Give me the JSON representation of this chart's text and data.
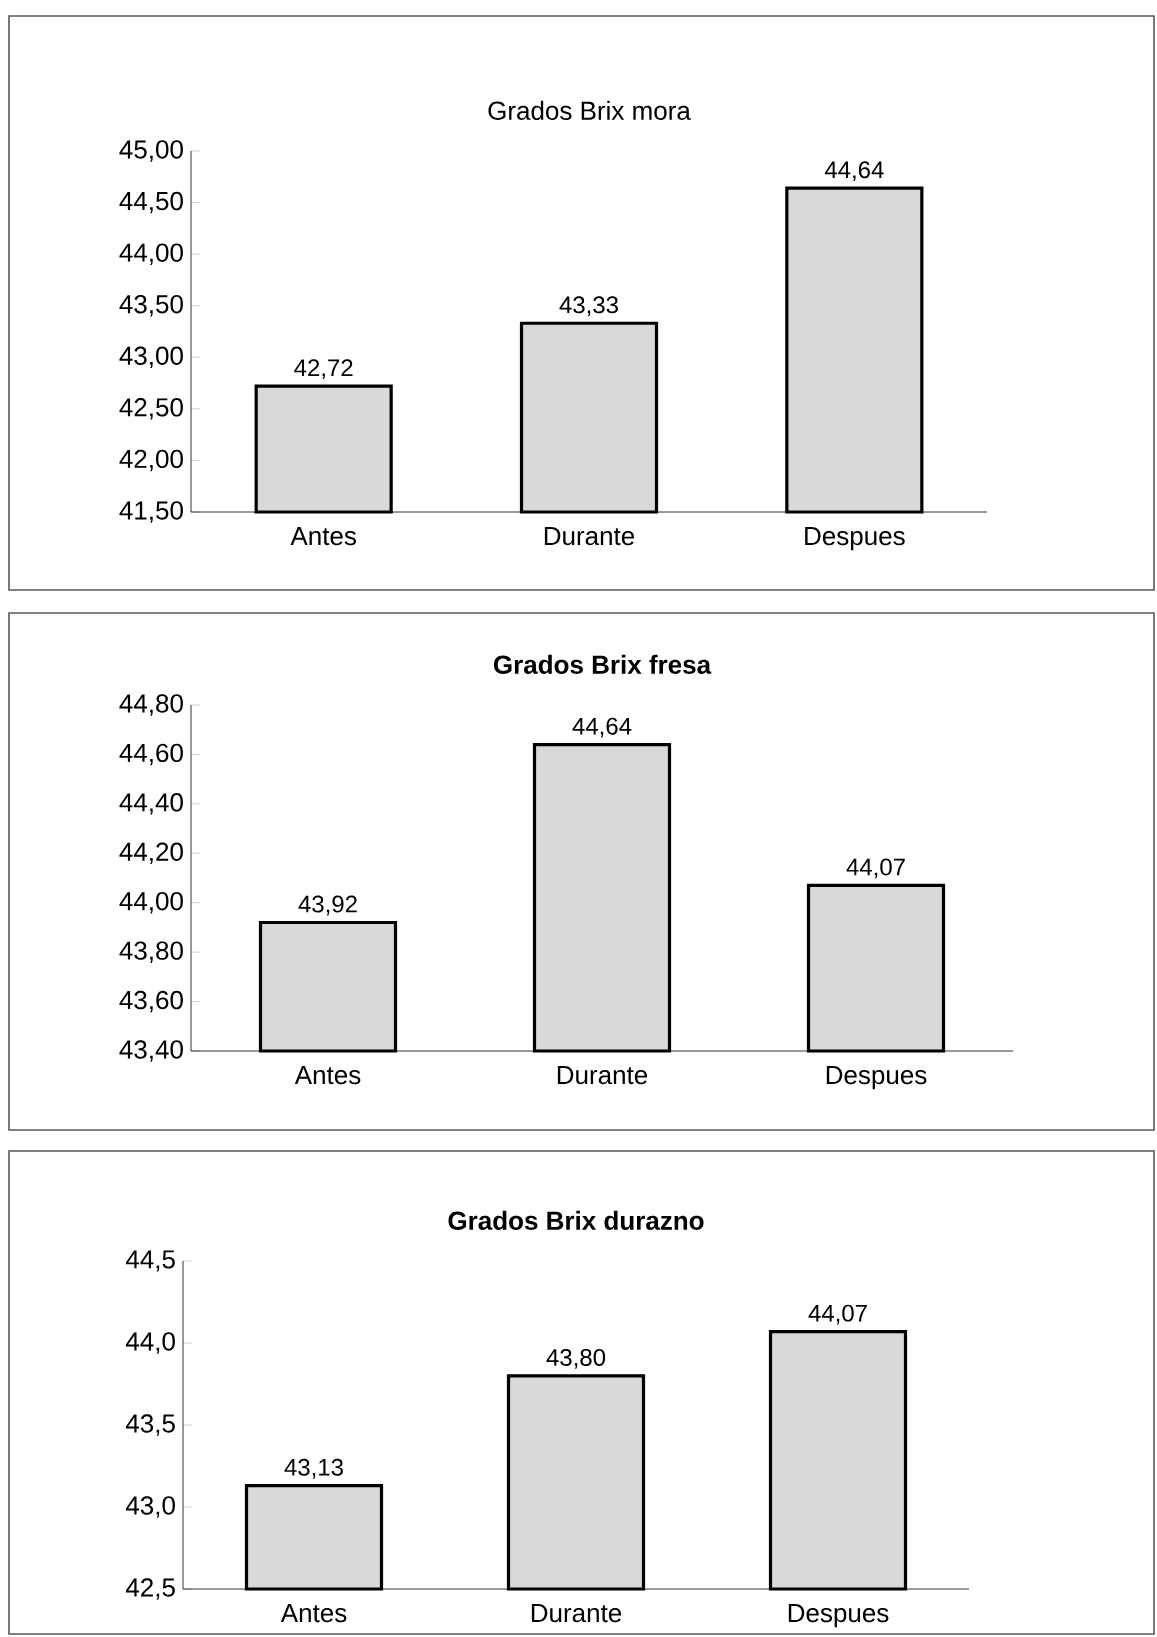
{
  "chart_data": [
    {
      "type": "bar",
      "title": "Grados Brix mora",
      "categories": [
        "Antes",
        "Durante",
        "Despues"
      ],
      "values": [
        42.72,
        43.33,
        44.64
      ],
      "value_labels": [
        "42,72",
        "43,33",
        "44,64"
      ],
      "color": "#d9d9d9",
      "ylim": [
        41.5,
        45
      ],
      "yticks": [
        {
          "value": 41.5,
          "label": "41,50"
        },
        {
          "value": 42,
          "label": "42,00"
        },
        {
          "value": 42.5,
          "label": "42,50"
        },
        {
          "value": 43,
          "label": "43,00"
        },
        {
          "value": 43.5,
          "label": "43,50"
        },
        {
          "value": 44,
          "label": "44,00"
        },
        {
          "value": 44.5,
          "label": "44,50"
        },
        {
          "value": 45,
          "label": "45,00"
        }
      ]
    },
    {
      "type": "bar",
      "title": "Grados Brix fresa",
      "categories": [
        "Antes",
        "Durante",
        "Despues"
      ],
      "values": [
        43.92,
        44.64,
        44.07
      ],
      "value_labels": [
        "43,92",
        "44,64",
        "44,07"
      ],
      "color": "#d9d9d9",
      "ylim": [
        43.4,
        44.8
      ],
      "yticks": [
        {
          "value": 43.4,
          "label": "43,40"
        },
        {
          "value": 43.6,
          "label": "43,60"
        },
        {
          "value": 43.8,
          "label": "43,80"
        },
        {
          "value": 44,
          "label": "44,00"
        },
        {
          "value": 44.2,
          "label": "44,20"
        },
        {
          "value": 44.4,
          "label": "44,40"
        },
        {
          "value": 44.6,
          "label": "44,60"
        },
        {
          "value": 44.8,
          "label": "44,80"
        }
      ]
    },
    {
      "type": "bar",
      "title": "Grados Brix durazno",
      "categories": [
        "Antes",
        "Durante",
        "Despues"
      ],
      "values": [
        43.13,
        43.8,
        44.07
      ],
      "value_labels": [
        "43,13",
        "43,80",
        "44,07"
      ],
      "color": "#d9d9d9",
      "ylim": [
        42.5,
        44.5
      ],
      "yticks": [
        {
          "value": 42.5,
          "label": "42,5"
        },
        {
          "value": 43,
          "label": "43,0"
        },
        {
          "value": 43.5,
          "label": "43,5"
        },
        {
          "value": 44,
          "label": "44,0"
        },
        {
          "value": 44.5,
          "label": "44,5"
        }
      ]
    }
  ]
}
